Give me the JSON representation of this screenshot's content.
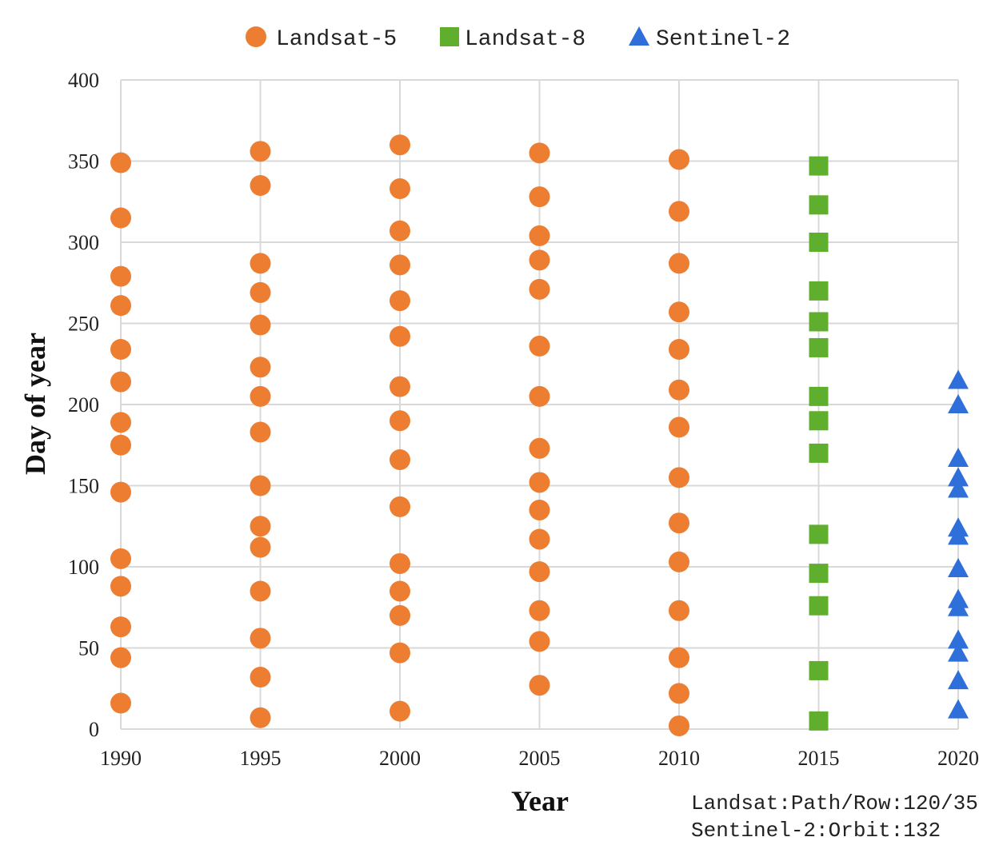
{
  "chart_data": {
    "type": "scatter",
    "xlabel": "Year",
    "ylabel": "Day of year",
    "xlim": [
      1990,
      2020
    ],
    "ylim": [
      0,
      400
    ],
    "xticks": [
      1990,
      1995,
      2000,
      2005,
      2010,
      2015,
      2020
    ],
    "yticks": [
      0,
      50,
      100,
      150,
      200,
      250,
      300,
      350,
      400
    ],
    "grid": true,
    "legend_position": "top",
    "series": [
      {
        "name": "Landsat-5",
        "marker": "circle",
        "color": "#ED7D31",
        "points": [
          [
            1990,
            349
          ],
          [
            1990,
            315
          ],
          [
            1990,
            279
          ],
          [
            1990,
            261
          ],
          [
            1990,
            234
          ],
          [
            1990,
            214
          ],
          [
            1990,
            189
          ],
          [
            1990,
            175
          ],
          [
            1990,
            146
          ],
          [
            1990,
            105
          ],
          [
            1990,
            88
          ],
          [
            1990,
            63
          ],
          [
            1990,
            44
          ],
          [
            1990,
            16
          ],
          [
            1995,
            356
          ],
          [
            1995,
            335
          ],
          [
            1995,
            287
          ],
          [
            1995,
            269
          ],
          [
            1995,
            249
          ],
          [
            1995,
            223
          ],
          [
            1995,
            205
          ],
          [
            1995,
            183
          ],
          [
            1995,
            150
          ],
          [
            1995,
            125
          ],
          [
            1995,
            112
          ],
          [
            1995,
            85
          ],
          [
            1995,
            56
          ],
          [
            1995,
            32
          ],
          [
            1995,
            7
          ],
          [
            2000,
            360
          ],
          [
            2000,
            333
          ],
          [
            2000,
            307
          ],
          [
            2000,
            286
          ],
          [
            2000,
            264
          ],
          [
            2000,
            242
          ],
          [
            2000,
            211
          ],
          [
            2000,
            190
          ],
          [
            2000,
            166
          ],
          [
            2000,
            137
          ],
          [
            2000,
            102
          ],
          [
            2000,
            85
          ],
          [
            2000,
            70
          ],
          [
            2000,
            47
          ],
          [
            2000,
            11
          ],
          [
            2005,
            355
          ],
          [
            2005,
            328
          ],
          [
            2005,
            304
          ],
          [
            2005,
            289
          ],
          [
            2005,
            271
          ],
          [
            2005,
            236
          ],
          [
            2005,
            205
          ],
          [
            2005,
            173
          ],
          [
            2005,
            152
          ],
          [
            2005,
            135
          ],
          [
            2005,
            117
          ],
          [
            2005,
            97
          ],
          [
            2005,
            73
          ],
          [
            2005,
            54
          ],
          [
            2005,
            27
          ],
          [
            2010,
            351
          ],
          [
            2010,
            319
          ],
          [
            2010,
            287
          ],
          [
            2010,
            257
          ],
          [
            2010,
            234
          ],
          [
            2010,
            209
          ],
          [
            2010,
            186
          ],
          [
            2010,
            155
          ],
          [
            2010,
            127
          ],
          [
            2010,
            103
          ],
          [
            2010,
            73
          ],
          [
            2010,
            44
          ],
          [
            2010,
            22
          ],
          [
            2010,
            2
          ]
        ]
      },
      {
        "name": "Landsat-8",
        "marker": "square",
        "color": "#5FAE2E",
        "points": [
          [
            2015,
            347
          ],
          [
            2015,
            323
          ],
          [
            2015,
            300
          ],
          [
            2015,
            270
          ],
          [
            2015,
            251
          ],
          [
            2015,
            235
          ],
          [
            2015,
            205
          ],
          [
            2015,
            190
          ],
          [
            2015,
            170
          ],
          [
            2015,
            120
          ],
          [
            2015,
            96
          ],
          [
            2015,
            76
          ],
          [
            2015,
            36
          ],
          [
            2015,
            5
          ]
        ]
      },
      {
        "name": "Sentinel-2",
        "marker": "triangle",
        "color": "#2E6FD9",
        "points": [
          [
            2020,
            215
          ],
          [
            2020,
            200
          ],
          [
            2020,
            167
          ],
          [
            2020,
            155
          ],
          [
            2020,
            148
          ],
          [
            2020,
            124
          ],
          [
            2020,
            119
          ],
          [
            2020,
            99
          ],
          [
            2020,
            80
          ],
          [
            2020,
            75
          ],
          [
            2020,
            55
          ],
          [
            2020,
            47
          ],
          [
            2020,
            30
          ],
          [
            2020,
            12
          ]
        ]
      }
    ],
    "annotations": [
      "Landsat:Path/Row:120/35",
      "Sentinel-2:Orbit:132"
    ]
  }
}
